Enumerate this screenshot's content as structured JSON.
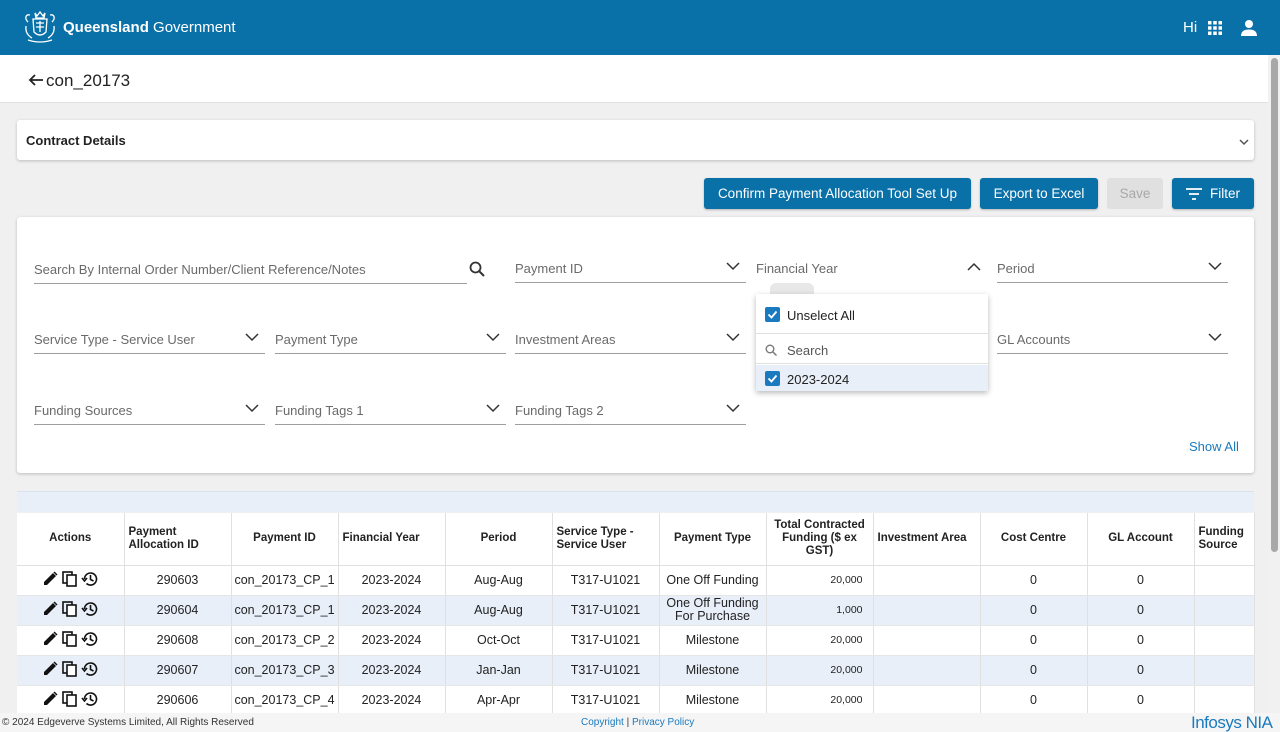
{
  "header": {
    "brand_bold": "Queensland",
    "brand_rest": "Government",
    "greeting": "Hi"
  },
  "page": {
    "title": "con_20173"
  },
  "contract": {
    "title": "Contract Details"
  },
  "actions": {
    "confirm": "Confirm Payment Allocation Tool Set Up",
    "export": "Export to Excel",
    "save": "Save",
    "filter": "Filter"
  },
  "filters": {
    "search_placeholder": "Search By Internal Order Number/Client Reference/Notes",
    "payment_id": "Payment ID",
    "financial_year": "Financial Year",
    "period": "Period",
    "service_type": "Service Type - Service User",
    "payment_type": "Payment Type",
    "investment_areas": "Investment Areas",
    "gl_accounts": "GL Accounts",
    "funding_sources": "Funding Sources",
    "funding_tags_1": "Funding Tags 1",
    "funding_tags_2": "Funding Tags 2",
    "show_all": "Show All"
  },
  "dropdown": {
    "unselect_all": "Unselect All",
    "search": "Search",
    "option": "2023-2024"
  },
  "table": {
    "headers": [
      "Actions",
      "Payment Allocation ID",
      "Payment ID",
      "Financial Year",
      "Period",
      "Service Type - Service User",
      "Payment Type",
      "Total Contracted Funding ($ ex GST)",
      "Investment Area",
      "Cost Centre",
      "GL Account",
      "Funding Source"
    ],
    "rows": [
      {
        "alloc": "290603",
        "pid": "con_20173_CP_1",
        "fy": "2023-2024",
        "period": "Aug-Aug",
        "svc": "T317-U1021",
        "ptype": "One Off Funding",
        "total": "20,000",
        "area": "",
        "cc": "0",
        "gl": "0",
        "fs": ""
      },
      {
        "alloc": "290604",
        "pid": "con_20173_CP_1",
        "fy": "2023-2024",
        "period": "Aug-Aug",
        "svc": "T317-U1021",
        "ptype": "One Off Funding For Purchase",
        "total": "1,000",
        "area": "",
        "cc": "0",
        "gl": "0",
        "fs": ""
      },
      {
        "alloc": "290608",
        "pid": "con_20173_CP_2",
        "fy": "2023-2024",
        "period": "Oct-Oct",
        "svc": "T317-U1021",
        "ptype": "Milestone",
        "total": "20,000",
        "area": "",
        "cc": "0",
        "gl": "0",
        "fs": ""
      },
      {
        "alloc": "290607",
        "pid": "con_20173_CP_3",
        "fy": "2023-2024",
        "period": "Jan-Jan",
        "svc": "T317-U1021",
        "ptype": "Milestone",
        "total": "20,000",
        "area": "",
        "cc": "0",
        "gl": "0",
        "fs": ""
      },
      {
        "alloc": "290606",
        "pid": "con_20173_CP_4",
        "fy": "2023-2024",
        "period": "Apr-Apr",
        "svc": "T317-U1021",
        "ptype": "Milestone",
        "total": "20,000",
        "area": "",
        "cc": "0",
        "gl": "0",
        "fs": ""
      }
    ]
  },
  "footer": {
    "copyright_text": "© 2024 Edgeverve Systems Limited, All Rights Reserved",
    "copyright_link": "Copyright",
    "separator": "|",
    "privacy": "Privacy Policy",
    "brand": "Infosys NIA"
  },
  "colors": {
    "primary": "#0a71a8",
    "link": "#1a7abf",
    "row_alt": "#e8eff9"
  }
}
